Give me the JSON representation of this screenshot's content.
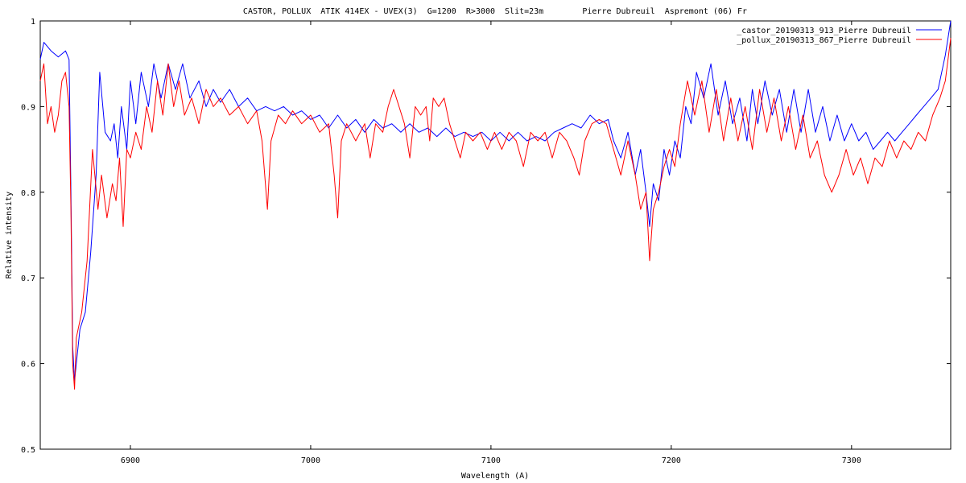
{
  "chart_data": {
    "type": "line",
    "title": "CASTOR, POLLUX  ATIK 414EX - UVEX(3)  G=1200  R>3000  Slit=23m        Pierre Dubreuil  Aspremont (06) Fr",
    "xlabel": "Wavelength (A)",
    "ylabel": "Relative intensity",
    "xlim": [
      6850,
      7355
    ],
    "ylim": [
      0.5,
      1.0
    ],
    "x_ticks": [
      6900,
      7000,
      7100,
      7200,
      7300
    ],
    "y_ticks": [
      0.5,
      0.6,
      0.7,
      0.8,
      0.9,
      1.0
    ],
    "x_tick_labels": [
      "6900",
      "7000",
      "7100",
      "7200",
      "7300"
    ],
    "y_tick_labels": [
      "0.5",
      "0.6",
      "0.7",
      "0.8",
      "0.9",
      "1"
    ],
    "grid": false,
    "legend_position": "top-right",
    "series": [
      {
        "name": "_castor_20190313_913_Pierre Dubreuil",
        "color": "#0000ff",
        "points": [
          [
            6850,
            0.955
          ],
          [
            6852,
            0.975
          ],
          [
            6856,
            0.965
          ],
          [
            6860,
            0.958
          ],
          [
            6864,
            0.965
          ],
          [
            6866,
            0.955
          ],
          [
            6867,
            0.8
          ],
          [
            6868,
            0.62
          ],
          [
            6869,
            0.58
          ],
          [
            6870,
            0.6
          ],
          [
            6872,
            0.64
          ],
          [
            6875,
            0.66
          ],
          [
            6878,
            0.73
          ],
          [
            6881,
            0.82
          ],
          [
            6883,
            0.94
          ],
          [
            6886,
            0.87
          ],
          [
            6889,
            0.86
          ],
          [
            6891,
            0.88
          ],
          [
            6893,
            0.84
          ],
          [
            6895,
            0.9
          ],
          [
            6898,
            0.85
          ],
          [
            6900,
            0.93
          ],
          [
            6903,
            0.88
          ],
          [
            6906,
            0.94
          ],
          [
            6910,
            0.9
          ],
          [
            6913,
            0.95
          ],
          [
            6917,
            0.91
          ],
          [
            6921,
            0.95
          ],
          [
            6925,
            0.92
          ],
          [
            6929,
            0.95
          ],
          [
            6933,
            0.91
          ],
          [
            6938,
            0.93
          ],
          [
            6942,
            0.9
          ],
          [
            6946,
            0.92
          ],
          [
            6950,
            0.905
          ],
          [
            6955,
            0.92
          ],
          [
            6960,
            0.9
          ],
          [
            6965,
            0.91
          ],
          [
            6970,
            0.895
          ],
          [
            6975,
            0.9
          ],
          [
            6980,
            0.895
          ],
          [
            6985,
            0.9
          ],
          [
            6990,
            0.89
          ],
          [
            6995,
            0.895
          ],
          [
            7000,
            0.885
          ],
          [
            7005,
            0.89
          ],
          [
            7010,
            0.875
          ],
          [
            7015,
            0.89
          ],
          [
            7020,
            0.875
          ],
          [
            7025,
            0.885
          ],
          [
            7030,
            0.87
          ],
          [
            7035,
            0.885
          ],
          [
            7040,
            0.875
          ],
          [
            7045,
            0.88
          ],
          [
            7050,
            0.87
          ],
          [
            7055,
            0.88
          ],
          [
            7060,
            0.87
          ],
          [
            7065,
            0.875
          ],
          [
            7070,
            0.865
          ],
          [
            7075,
            0.875
          ],
          [
            7080,
            0.865
          ],
          [
            7085,
            0.87
          ],
          [
            7090,
            0.865
          ],
          [
            7095,
            0.87
          ],
          [
            7100,
            0.86
          ],
          [
            7105,
            0.87
          ],
          [
            7110,
            0.86
          ],
          [
            7115,
            0.87
          ],
          [
            7120,
            0.86
          ],
          [
            7125,
            0.865
          ],
          [
            7130,
            0.86
          ],
          [
            7135,
            0.87
          ],
          [
            7140,
            0.875
          ],
          [
            7145,
            0.88
          ],
          [
            7150,
            0.875
          ],
          [
            7155,
            0.89
          ],
          [
            7160,
            0.88
          ],
          [
            7165,
            0.885
          ],
          [
            7168,
            0.86
          ],
          [
            7172,
            0.84
          ],
          [
            7176,
            0.87
          ],
          [
            7180,
            0.82
          ],
          [
            7183,
            0.85
          ],
          [
            7186,
            0.8
          ],
          [
            7188,
            0.76
          ],
          [
            7190,
            0.81
          ],
          [
            7193,
            0.79
          ],
          [
            7196,
            0.85
          ],
          [
            7199,
            0.82
          ],
          [
            7202,
            0.86
          ],
          [
            7205,
            0.84
          ],
          [
            7208,
            0.9
          ],
          [
            7211,
            0.88
          ],
          [
            7214,
            0.94
          ],
          [
            7218,
            0.91
          ],
          [
            7222,
            0.95
          ],
          [
            7226,
            0.89
          ],
          [
            7230,
            0.93
          ],
          [
            7234,
            0.88
          ],
          [
            7238,
            0.91
          ],
          [
            7242,
            0.86
          ],
          [
            7245,
            0.92
          ],
          [
            7248,
            0.88
          ],
          [
            7252,
            0.93
          ],
          [
            7256,
            0.89
          ],
          [
            7260,
            0.92
          ],
          [
            7264,
            0.87
          ],
          [
            7268,
            0.92
          ],
          [
            7272,
            0.87
          ],
          [
            7276,
            0.92
          ],
          [
            7280,
            0.87
          ],
          [
            7284,
            0.9
          ],
          [
            7288,
            0.86
          ],
          [
            7292,
            0.89
          ],
          [
            7296,
            0.86
          ],
          [
            7300,
            0.88
          ],
          [
            7304,
            0.86
          ],
          [
            7308,
            0.87
          ],
          [
            7312,
            0.85
          ],
          [
            7316,
            0.86
          ],
          [
            7320,
            0.87
          ],
          [
            7324,
            0.86
          ],
          [
            7328,
            0.87
          ],
          [
            7332,
            0.88
          ],
          [
            7336,
            0.89
          ],
          [
            7340,
            0.9
          ],
          [
            7344,
            0.91
          ],
          [
            7348,
            0.92
          ],
          [
            7350,
            0.94
          ],
          [
            7352,
            0.96
          ],
          [
            7355,
            1.0
          ]
        ]
      },
      {
        "name": "_pollux_20190313_867_Pierre Dubreuil",
        "color": "#ff0000",
        "points": [
          [
            6850,
            0.93
          ],
          [
            6852,
            0.95
          ],
          [
            6854,
            0.88
          ],
          [
            6856,
            0.9
          ],
          [
            6858,
            0.87
          ],
          [
            6860,
            0.89
          ],
          [
            6862,
            0.93
          ],
          [
            6864,
            0.94
          ],
          [
            6866,
            0.9
          ],
          [
            6867,
            0.78
          ],
          [
            6868,
            0.6
          ],
          [
            6869,
            0.57
          ],
          [
            6870,
            0.63
          ],
          [
            6873,
            0.66
          ],
          [
            6876,
            0.72
          ],
          [
            6879,
            0.85
          ],
          [
            6882,
            0.78
          ],
          [
            6884,
            0.82
          ],
          [
            6887,
            0.77
          ],
          [
            6890,
            0.81
          ],
          [
            6892,
            0.79
          ],
          [
            6894,
            0.84
          ],
          [
            6896,
            0.76
          ],
          [
            6898,
            0.85
          ],
          [
            6900,
            0.84
          ],
          [
            6903,
            0.87
          ],
          [
            6906,
            0.85
          ],
          [
            6909,
            0.9
          ],
          [
            6912,
            0.87
          ],
          [
            6915,
            0.93
          ],
          [
            6918,
            0.89
          ],
          [
            6921,
            0.95
          ],
          [
            6924,
            0.9
          ],
          [
            6927,
            0.93
          ],
          [
            6930,
            0.89
          ],
          [
            6934,
            0.91
          ],
          [
            6938,
            0.88
          ],
          [
            6942,
            0.92
          ],
          [
            6946,
            0.9
          ],
          [
            6950,
            0.91
          ],
          [
            6955,
            0.89
          ],
          [
            6960,
            0.9
          ],
          [
            6965,
            0.88
          ],
          [
            6970,
            0.895
          ],
          [
            6973,
            0.86
          ],
          [
            6976,
            0.78
          ],
          [
            6978,
            0.86
          ],
          [
            6982,
            0.89
          ],
          [
            6986,
            0.88
          ],
          [
            6990,
            0.895
          ],
          [
            6995,
            0.88
          ],
          [
            7000,
            0.89
          ],
          [
            7005,
            0.87
          ],
          [
            7010,
            0.88
          ],
          [
            7013,
            0.82
          ],
          [
            7015,
            0.77
          ],
          [
            7017,
            0.86
          ],
          [
            7020,
            0.88
          ],
          [
            7025,
            0.86
          ],
          [
            7030,
            0.88
          ],
          [
            7033,
            0.84
          ],
          [
            7036,
            0.88
          ],
          [
            7040,
            0.87
          ],
          [
            7043,
            0.9
          ],
          [
            7046,
            0.92
          ],
          [
            7049,
            0.9
          ],
          [
            7052,
            0.88
          ],
          [
            7055,
            0.84
          ],
          [
            7058,
            0.9
          ],
          [
            7061,
            0.89
          ],
          [
            7064,
            0.9
          ],
          [
            7066,
            0.86
          ],
          [
            7068,
            0.91
          ],
          [
            7071,
            0.9
          ],
          [
            7074,
            0.91
          ],
          [
            7077,
            0.88
          ],
          [
            7080,
            0.86
          ],
          [
            7083,
            0.84
          ],
          [
            7086,
            0.87
          ],
          [
            7090,
            0.86
          ],
          [
            7094,
            0.87
          ],
          [
            7098,
            0.85
          ],
          [
            7102,
            0.87
          ],
          [
            7106,
            0.85
          ],
          [
            7110,
            0.87
          ],
          [
            7114,
            0.86
          ],
          [
            7118,
            0.83
          ],
          [
            7122,
            0.87
          ],
          [
            7126,
            0.86
          ],
          [
            7130,
            0.87
          ],
          [
            7134,
            0.84
          ],
          [
            7138,
            0.87
          ],
          [
            7142,
            0.86
          ],
          [
            7146,
            0.84
          ],
          [
            7149,
            0.82
          ],
          [
            7152,
            0.86
          ],
          [
            7156,
            0.88
          ],
          [
            7160,
            0.885
          ],
          [
            7164,
            0.88
          ],
          [
            7168,
            0.85
          ],
          [
            7172,
            0.82
          ],
          [
            7176,
            0.86
          ],
          [
            7180,
            0.82
          ],
          [
            7183,
            0.78
          ],
          [
            7186,
            0.8
          ],
          [
            7188,
            0.72
          ],
          [
            7190,
            0.78
          ],
          [
            7193,
            0.8
          ],
          [
            7196,
            0.83
          ],
          [
            7199,
            0.85
          ],
          [
            7202,
            0.83
          ],
          [
            7205,
            0.88
          ],
          [
            7209,
            0.93
          ],
          [
            7213,
            0.89
          ],
          [
            7217,
            0.93
          ],
          [
            7221,
            0.87
          ],
          [
            7225,
            0.92
          ],
          [
            7229,
            0.86
          ],
          [
            7233,
            0.91
          ],
          [
            7237,
            0.86
          ],
          [
            7241,
            0.9
          ],
          [
            7245,
            0.85
          ],
          [
            7249,
            0.92
          ],
          [
            7253,
            0.87
          ],
          [
            7257,
            0.91
          ],
          [
            7261,
            0.86
          ],
          [
            7265,
            0.9
          ],
          [
            7269,
            0.85
          ],
          [
            7273,
            0.89
          ],
          [
            7277,
            0.84
          ],
          [
            7281,
            0.86
          ],
          [
            7285,
            0.82
          ],
          [
            7289,
            0.8
          ],
          [
            7293,
            0.82
          ],
          [
            7297,
            0.85
          ],
          [
            7301,
            0.82
          ],
          [
            7305,
            0.84
          ],
          [
            7309,
            0.81
          ],
          [
            7313,
            0.84
          ],
          [
            7317,
            0.83
          ],
          [
            7321,
            0.86
          ],
          [
            7325,
            0.84
          ],
          [
            7329,
            0.86
          ],
          [
            7333,
            0.85
          ],
          [
            7337,
            0.87
          ],
          [
            7341,
            0.86
          ],
          [
            7345,
            0.89
          ],
          [
            7349,
            0.91
          ],
          [
            7352,
            0.93
          ],
          [
            7355,
            0.98
          ]
        ]
      }
    ]
  }
}
